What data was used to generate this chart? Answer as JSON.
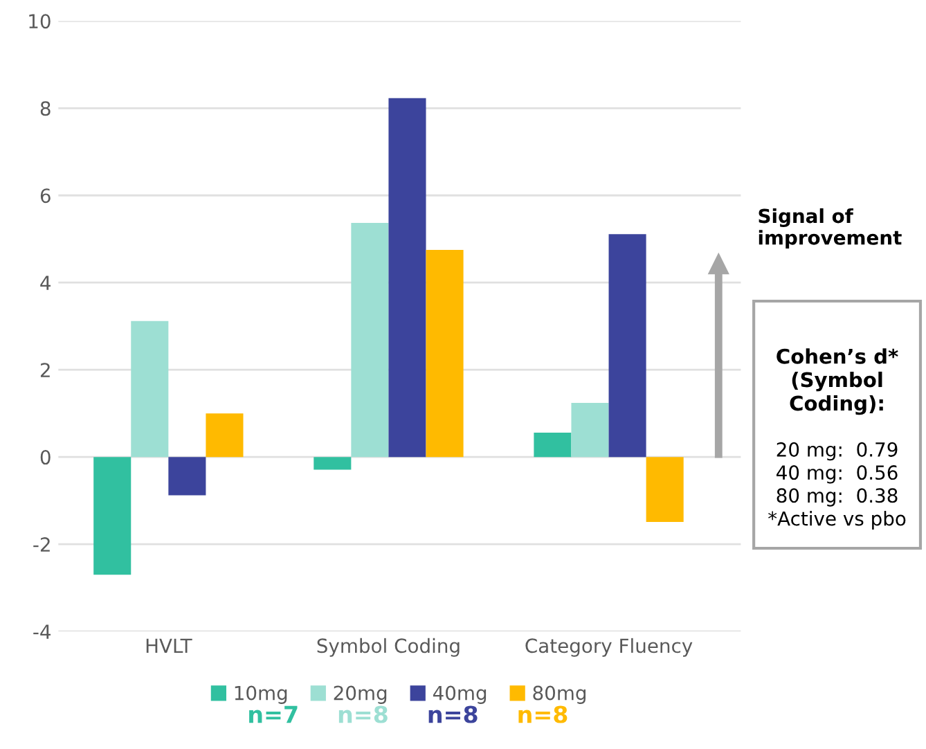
{
  "chart_data": {
    "type": "bar",
    "categories": [
      "HVLT",
      "Symbol Coding",
      "Category Fluency"
    ],
    "series": [
      {
        "name": "10mg",
        "color": "#31c0a0",
        "values": [
          -2.7,
          -0.29,
          0.56
        ]
      },
      {
        "name": "20mg",
        "color": "#9ddfd3",
        "values": [
          3.12,
          5.37,
          1.24
        ]
      },
      {
        "name": "40mg",
        "color": "#3c449c",
        "values": [
          -0.88,
          8.23,
          5.11
        ]
      },
      {
        "name": "80mg",
        "color": "#ffba00",
        "values": [
          1.0,
          4.75,
          -1.49
        ]
      }
    ],
    "ylim": [
      -4,
      10
    ],
    "yticks": [
      -4,
      -2,
      0,
      2,
      4,
      6,
      8,
      10
    ],
    "grid": "y",
    "legend": "bottom",
    "annotations": [
      "n=7",
      "n=8",
      "n=8",
      "n=8",
      "Signal of improvement",
      "Cohen’s d*\n(Symbol\nCoding):",
      "20 mg:  0.79\n40 mg:  0.56\n80 mg:  0.38\n*Active vs pbo"
    ]
  }
}
